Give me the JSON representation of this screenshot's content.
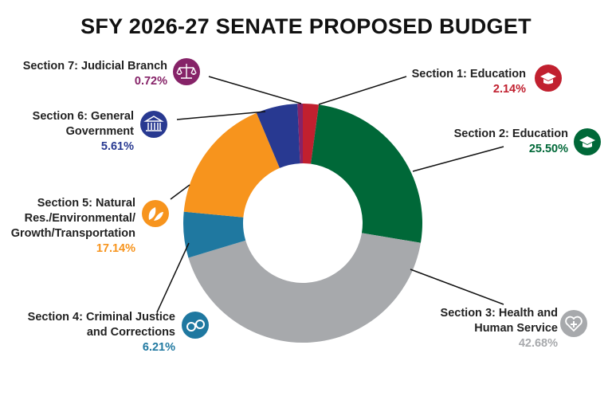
{
  "chart_data": {
    "type": "pie",
    "variant": "donut",
    "title": "SFY 2026-27 SENATE PROPOSED BUDGET",
    "slices": [
      {
        "lines": [
          "Section 1: Education"
        ],
        "value": 2.14,
        "label_pct": "2.14%",
        "color": "#C1202F",
        "icon": "graduation-cap-icon"
      },
      {
        "lines": [
          "Section 2: Education"
        ],
        "value": 25.5,
        "label_pct": "25.50%",
        "color": "#006838",
        "icon": "graduation-cap-icon"
      },
      {
        "lines": [
          "Section 3: Health and",
          "Human Service"
        ],
        "value": 42.68,
        "label_pct": "42.68%",
        "color": "#A7A9AC",
        "icon": "heart-plus-icon"
      },
      {
        "lines": [
          "Section 4: Criminal Justice",
          "and Corrections"
        ],
        "value": 6.21,
        "label_pct": "6.21%",
        "color": "#1F78A0",
        "icon": "handcuffs-icon"
      },
      {
        "lines": [
          "Section 5: Natural",
          "Res./Environmental/",
          "Growth/Transportation"
        ],
        "value": 17.14,
        "label_pct": "17.14%",
        "color": "#F7941D",
        "icon": "leaves-icon"
      },
      {
        "lines": [
          "Section 6: General",
          "Government"
        ],
        "value": 5.61,
        "label_pct": "5.61%",
        "color": "#283991",
        "icon": "government-building-icon"
      },
      {
        "lines": [
          "Section 7: Judicial Branch"
        ],
        "value": 0.72,
        "label_pct": "0.72%",
        "color": "#862368",
        "icon": "scales-icon"
      }
    ],
    "start": "top",
    "direction": "clockwise",
    "legend": "none"
  }
}
